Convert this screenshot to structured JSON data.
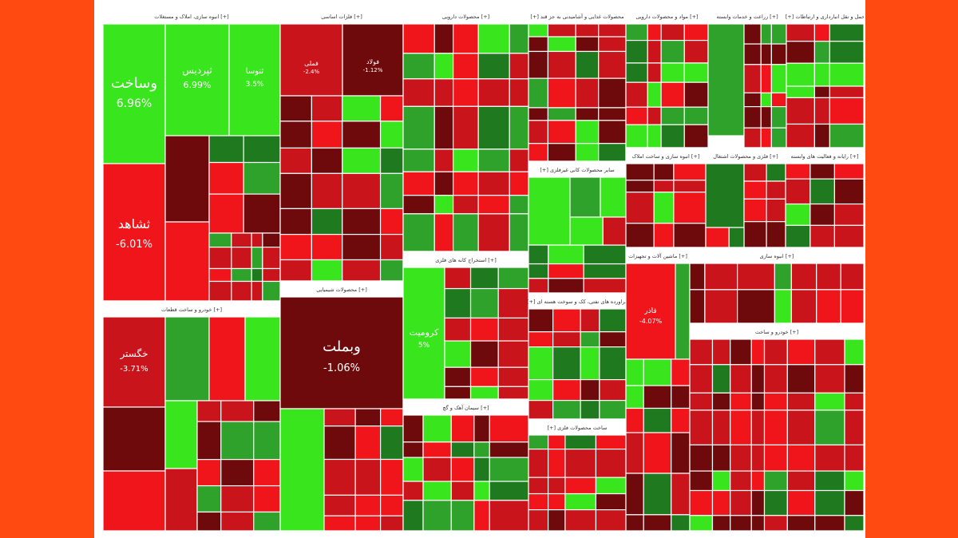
{
  "chart_data": {
    "type": "treemap",
    "colors": {
      "strong_up": "#39e61e",
      "up": "#2ea22a",
      "dark_up": "#1f7a1f",
      "strong_down": "#f0151a",
      "down": "#c8141a",
      "dark_down": "#6e0a0c",
      "header_bg": "#ffffff"
    },
    "sectors": [
      {
        "name": "انبوه سازی، املاک و مستغلات [+]"
      },
      {
        "name": "فلزات اساسی [+]"
      },
      {
        "name": "محصولات شیمیایی [+]"
      },
      {
        "name": "[+] محصولات غذایی و آشامیدنی به جز قند"
      },
      {
        "name": "محصولات دارویی [+]"
      },
      {
        "name": "مواد و محصولات دارویی [+]"
      },
      {
        "name": "زراعت و خدمات وابسته [+]"
      },
      {
        "name": "[+] حمل و نقل انبارداری و ارتباطات"
      },
      {
        "name": "انبوه سازی و ساخت املاک [+]"
      },
      {
        "name": "فلزی و محصولات اشتغال [+]"
      },
      {
        "name": "[+] سایر محصولات کانی غیرفلزی"
      },
      {
        "name": "استخراج کانه های فلزی [+]"
      },
      {
        "name": "خودرو و ساخت قطعات [+]"
      },
      {
        "name": "[+] فراورده های نفتی، کک و سوخت هسته ای"
      },
      {
        "name": "سیمان آهک و گچ [+]"
      },
      {
        "name": "[+] ساخت محصولات فلزی"
      },
      {
        "name": "ماشین آلات و تجهیزات [+]"
      },
      {
        "name": "رایانه و فعالیت های وابسته [+]"
      }
    ],
    "stocks": [
      {
        "name": "وساخت",
        "change": "6.96%"
      },
      {
        "name": "ثپردیس",
        "change": "6.99%"
      },
      {
        "name": "ثنوسا",
        "change": "3.5%"
      },
      {
        "name": "ثشاهد",
        "change": "-6.01%"
      },
      {
        "name": "وبملت",
        "change": "-1.06%"
      },
      {
        "name": "کرومیت",
        "change": "5%"
      },
      {
        "name": "خگستر",
        "change": "-3.71%"
      },
      {
        "name": "فاذر",
        "change": "-4.07%"
      },
      {
        "name": "فولاد",
        "change": "-1.12%"
      },
      {
        "name": "فملی",
        "change": "-2.4%"
      }
    ]
  }
}
